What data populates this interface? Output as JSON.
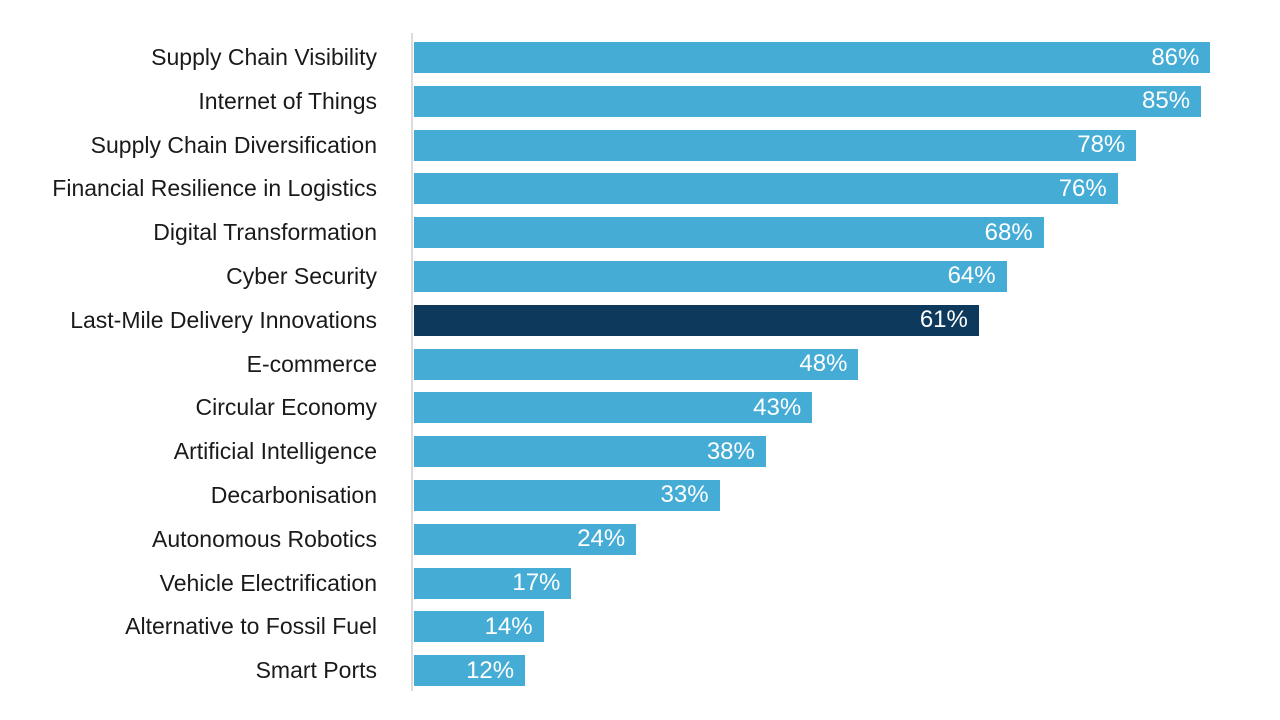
{
  "chart_data": {
    "type": "bar",
    "orientation": "horizontal",
    "title": "",
    "xlabel": "",
    "ylabel": "",
    "unit": "%",
    "xlim": [
      0,
      100
    ],
    "grid": false,
    "legend": false,
    "categories": [
      "Supply Chain Visibility",
      "Internet of Things",
      "Supply Chain Diversification",
      "Financial Resilience in Logistics",
      "Digital Transformation",
      "Cyber Security",
      "Last-Mile Delivery Innovations",
      "E-commerce",
      "Circular Economy",
      "Artificial Intelligence",
      "Decarbonisation",
      "Autonomous Robotics",
      "Vehicle Electrification",
      "Alternative to Fossil Fuel",
      "Smart Ports"
    ],
    "values": [
      86,
      85,
      78,
      76,
      68,
      64,
      61,
      48,
      43,
      38,
      33,
      24,
      17,
      14,
      12
    ],
    "value_labels": [
      "86%",
      "85%",
      "78%",
      "76%",
      "68%",
      "64%",
      "61%",
      "48%",
      "43%",
      "38%",
      "33%",
      "24%",
      "17%",
      "14%",
      "12%"
    ],
    "highlighted_category": "Last-Mile Delivery Innovations",
    "colors": {
      "bar": "#45acd6",
      "highlight_bar": "#0d3a5c",
      "value_text": "#ffffff",
      "category_text": "#1a1a1a",
      "axis_line": "#dcdcdc",
      "background": "#ffffff"
    }
  }
}
